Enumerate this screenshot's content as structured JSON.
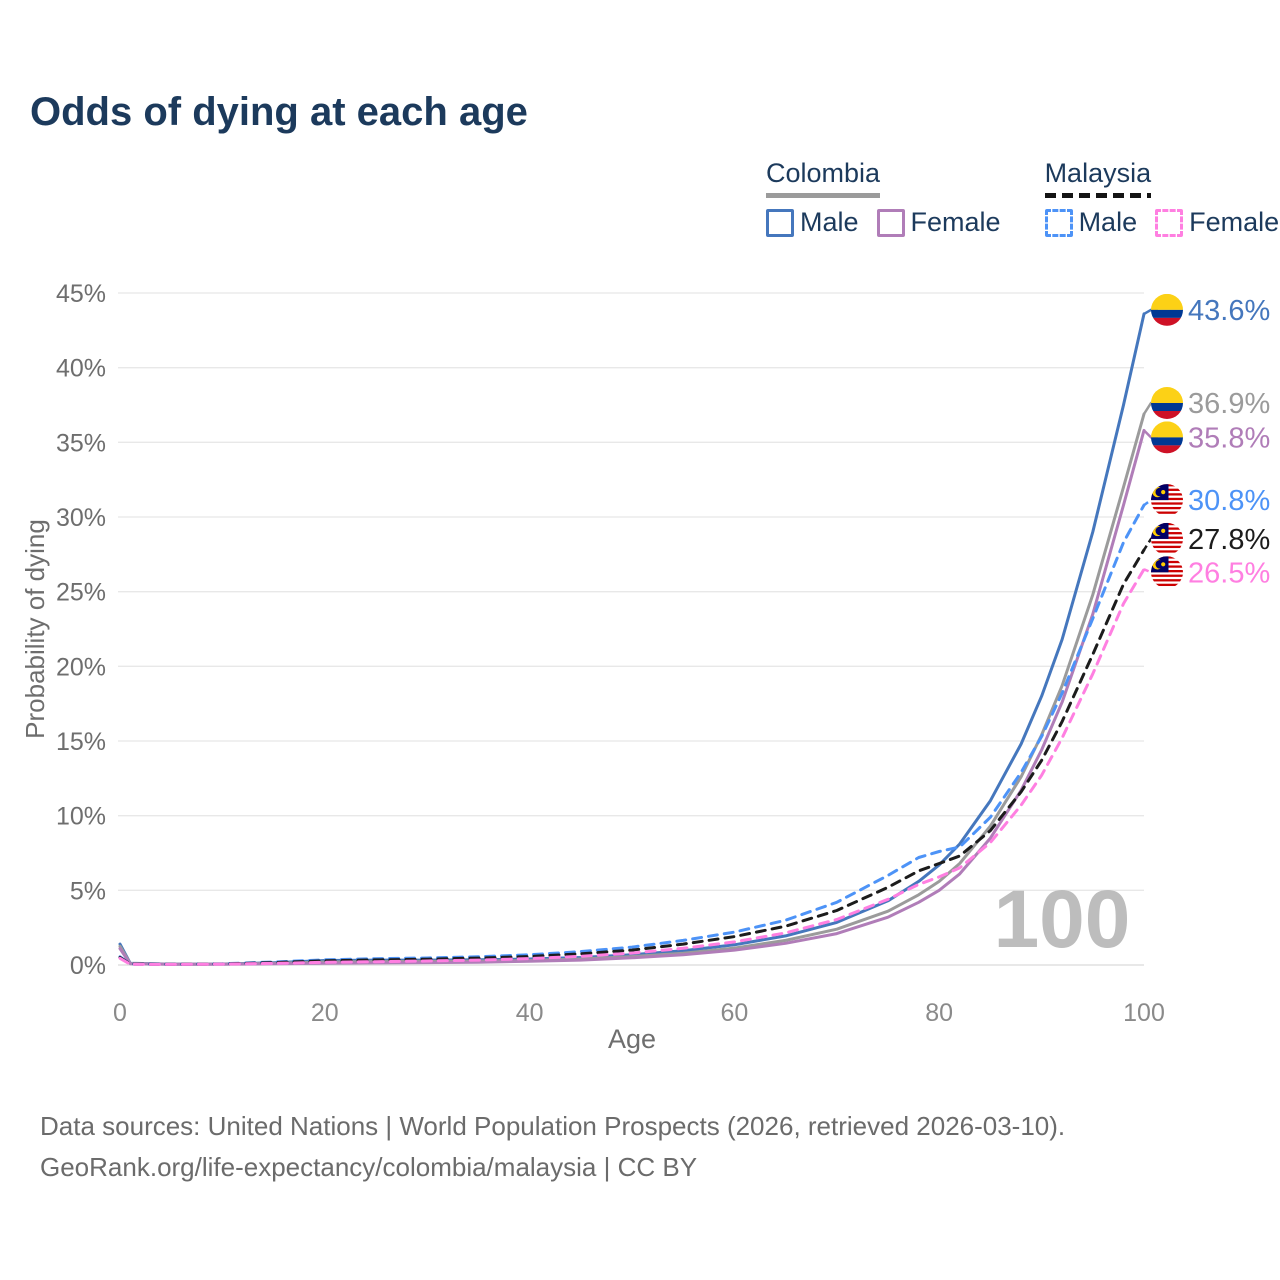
{
  "title": "Odds of dying at each age",
  "legend": {
    "groups": [
      {
        "name": "Colombia",
        "line_style": "solid",
        "underline_color": "#9b9b9b",
        "items": [
          {
            "label": "Male",
            "color": "#4577bd",
            "dashed": false
          },
          {
            "label": "Female",
            "color": "#b07db8",
            "dashed": false
          }
        ]
      },
      {
        "name": "Malaysia",
        "line_style": "dashed",
        "underline_color": "#141414",
        "items": [
          {
            "label": "Male",
            "color": "#4d93f7",
            "dashed": true
          },
          {
            "label": "Female",
            "color": "#ff7fe1",
            "dashed": true
          }
        ]
      }
    ]
  },
  "chart_data": {
    "type": "line",
    "title": "Odds of dying at each age",
    "xlabel": "Age",
    "ylabel": "Probability of dying",
    "xlim": [
      0,
      100
    ],
    "ylim": [
      0,
      45
    ],
    "grid": "horizontal",
    "legend_position": "top-right",
    "watermark": "100",
    "x_ticks": [
      {
        "value": 0,
        "label": "0"
      },
      {
        "value": 20,
        "label": "20"
      },
      {
        "value": 40,
        "label": "40"
      },
      {
        "value": 60,
        "label": "60"
      },
      {
        "value": 80,
        "label": "80"
      },
      {
        "value": 100,
        "label": "100"
      }
    ],
    "y_ticks": [
      {
        "value": 0,
        "label": "0%"
      },
      {
        "value": 5,
        "label": "5%"
      },
      {
        "value": 10,
        "label": "10%"
      },
      {
        "value": 15,
        "label": "15%"
      },
      {
        "value": 20,
        "label": "20%"
      },
      {
        "value": 25,
        "label": "25%"
      },
      {
        "value": 30,
        "label": "30%"
      },
      {
        "value": 35,
        "label": "35%"
      },
      {
        "value": 40,
        "label": "40%"
      },
      {
        "value": 45,
        "label": "45%"
      }
    ],
    "series": [
      {
        "name": "Colombia Male",
        "country": "Colombia",
        "sex": "Male",
        "color": "#4577bd",
        "dashed": false,
        "flag": "co",
        "end_label": "43.6%",
        "end_value": 43.6,
        "label_color": "#4577bd",
        "points": [
          [
            0,
            1.4
          ],
          [
            1,
            0.12
          ],
          [
            5,
            0.06
          ],
          [
            10,
            0.07
          ],
          [
            15,
            0.15
          ],
          [
            20,
            0.3
          ],
          [
            25,
            0.33
          ],
          [
            30,
            0.33
          ],
          [
            35,
            0.35
          ],
          [
            40,
            0.4
          ],
          [
            45,
            0.5
          ],
          [
            50,
            0.68
          ],
          [
            55,
            0.95
          ],
          [
            60,
            1.35
          ],
          [
            65,
            1.95
          ],
          [
            70,
            2.85
          ],
          [
            75,
            4.3
          ],
          [
            78,
            5.6
          ],
          [
            80,
            6.7
          ],
          [
            82,
            8.1
          ],
          [
            85,
            11.0
          ],
          [
            88,
            14.8
          ],
          [
            90,
            18.0
          ],
          [
            92,
            21.8
          ],
          [
            95,
            29.0
          ],
          [
            98,
            37.5
          ],
          [
            100,
            43.6
          ]
        ]
      },
      {
        "name": "Colombia Both sexes",
        "country": "Colombia",
        "sex": "Both",
        "color": "#9b9b9b",
        "dashed": false,
        "flag": "co",
        "end_label": "36.9%",
        "end_value": 36.9,
        "label_color": "#9b9b9b",
        "points": [
          [
            0,
            1.25
          ],
          [
            1,
            0.1
          ],
          [
            5,
            0.05
          ],
          [
            10,
            0.06
          ],
          [
            15,
            0.11
          ],
          [
            20,
            0.2
          ],
          [
            25,
            0.23
          ],
          [
            30,
            0.24
          ],
          [
            35,
            0.26
          ],
          [
            40,
            0.31
          ],
          [
            45,
            0.4
          ],
          [
            50,
            0.56
          ],
          [
            55,
            0.79
          ],
          [
            60,
            1.13
          ],
          [
            65,
            1.65
          ],
          [
            70,
            2.4
          ],
          [
            75,
            3.6
          ],
          [
            78,
            4.7
          ],
          [
            80,
            5.6
          ],
          [
            82,
            6.8
          ],
          [
            85,
            9.3
          ],
          [
            88,
            12.6
          ],
          [
            90,
            15.4
          ],
          [
            92,
            18.7
          ],
          [
            95,
            24.8
          ],
          [
            98,
            32.0
          ],
          [
            100,
            36.9
          ]
        ]
      },
      {
        "name": "Colombia Female",
        "country": "Colombia",
        "sex": "Female",
        "color": "#b07db8",
        "dashed": false,
        "flag": "co",
        "end_label": "35.8%",
        "end_value": 35.8,
        "label_color": "#b07db8",
        "points": [
          [
            0,
            1.1
          ],
          [
            1,
            0.09
          ],
          [
            5,
            0.05
          ],
          [
            10,
            0.05
          ],
          [
            15,
            0.08
          ],
          [
            20,
            0.12
          ],
          [
            25,
            0.14
          ],
          [
            30,
            0.16
          ],
          [
            35,
            0.19
          ],
          [
            40,
            0.25
          ],
          [
            45,
            0.33
          ],
          [
            50,
            0.48
          ],
          [
            55,
            0.68
          ],
          [
            60,
            1.0
          ],
          [
            65,
            1.45
          ],
          [
            70,
            2.1
          ],
          [
            75,
            3.2
          ],
          [
            78,
            4.2
          ],
          [
            80,
            5.0
          ],
          [
            82,
            6.1
          ],
          [
            85,
            8.5
          ],
          [
            88,
            11.7
          ],
          [
            90,
            14.4
          ],
          [
            92,
            17.6
          ],
          [
            95,
            23.5
          ],
          [
            98,
            30.8
          ],
          [
            100,
            35.8
          ]
        ]
      },
      {
        "name": "Malaysia Male",
        "country": "Malaysia",
        "sex": "Male",
        "color": "#4d93f7",
        "dashed": true,
        "flag": "my",
        "end_label": "30.8%",
        "end_value": 30.8,
        "label_color": "#4d93f7",
        "points": [
          [
            0,
            0.55
          ],
          [
            1,
            0.06
          ],
          [
            5,
            0.05
          ],
          [
            10,
            0.08
          ],
          [
            15,
            0.2
          ],
          [
            20,
            0.35
          ],
          [
            25,
            0.42
          ],
          [
            30,
            0.47
          ],
          [
            35,
            0.55
          ],
          [
            40,
            0.68
          ],
          [
            45,
            0.9
          ],
          [
            50,
            1.2
          ],
          [
            55,
            1.65
          ],
          [
            60,
            2.2
          ],
          [
            65,
            3.0
          ],
          [
            70,
            4.2
          ],
          [
            75,
            6.0
          ],
          [
            78,
            7.2
          ],
          [
            80,
            7.6
          ],
          [
            82,
            7.9
          ],
          [
            85,
            9.9
          ],
          [
            88,
            12.9
          ],
          [
            90,
            15.3
          ],
          [
            92,
            18.2
          ],
          [
            95,
            23.2
          ],
          [
            98,
            28.3
          ],
          [
            100,
            30.8
          ]
        ]
      },
      {
        "name": "Malaysia Both sexes",
        "country": "Malaysia",
        "sex": "Both",
        "color": "#1c1c1c",
        "dashed": true,
        "flag": "my",
        "end_label": "27.8%",
        "end_value": 27.8,
        "label_color": "#1c1c1c",
        "points": [
          [
            0,
            0.5
          ],
          [
            1,
            0.06
          ],
          [
            5,
            0.05
          ],
          [
            10,
            0.07
          ],
          [
            15,
            0.16
          ],
          [
            20,
            0.28
          ],
          [
            25,
            0.34
          ],
          [
            30,
            0.39
          ],
          [
            35,
            0.46
          ],
          [
            40,
            0.57
          ],
          [
            45,
            0.75
          ],
          [
            50,
            1.0
          ],
          [
            55,
            1.4
          ],
          [
            60,
            1.9
          ],
          [
            65,
            2.6
          ],
          [
            70,
            3.65
          ],
          [
            75,
            5.2
          ],
          [
            78,
            6.3
          ],
          [
            80,
            6.8
          ],
          [
            82,
            7.3
          ],
          [
            85,
            9.0
          ],
          [
            88,
            11.6
          ],
          [
            90,
            13.7
          ],
          [
            92,
            16.3
          ],
          [
            95,
            20.8
          ],
          [
            98,
            25.5
          ],
          [
            100,
            27.8
          ]
        ]
      },
      {
        "name": "Malaysia Female",
        "country": "Malaysia",
        "sex": "Female",
        "color": "#ff7fe1",
        "dashed": true,
        "flag": "my",
        "end_label": "26.5%",
        "end_value": 26.5,
        "label_color": "#ff7fe1",
        "points": [
          [
            0,
            0.45
          ],
          [
            1,
            0.05
          ],
          [
            5,
            0.04
          ],
          [
            10,
            0.06
          ],
          [
            15,
            0.11
          ],
          [
            20,
            0.18
          ],
          [
            25,
            0.22
          ],
          [
            30,
            0.27
          ],
          [
            35,
            0.33
          ],
          [
            40,
            0.43
          ],
          [
            45,
            0.58
          ],
          [
            50,
            0.8
          ],
          [
            55,
            1.12
          ],
          [
            60,
            1.55
          ],
          [
            65,
            2.15
          ],
          [
            70,
            3.05
          ],
          [
            75,
            4.4
          ],
          [
            78,
            5.4
          ],
          [
            80,
            5.9
          ],
          [
            82,
            6.5
          ],
          [
            85,
            8.2
          ],
          [
            88,
            10.7
          ],
          [
            90,
            12.7
          ],
          [
            92,
            15.2
          ],
          [
            95,
            19.5
          ],
          [
            98,
            24.2
          ],
          [
            100,
            26.5
          ]
        ]
      }
    ]
  },
  "footer": {
    "line1": "Data sources: United Nations | World Population Prospects (2026, retrieved 2026-03-10).",
    "line2": "GeoRank.org/life-expectancy/colombia/malaysia | CC BY"
  }
}
